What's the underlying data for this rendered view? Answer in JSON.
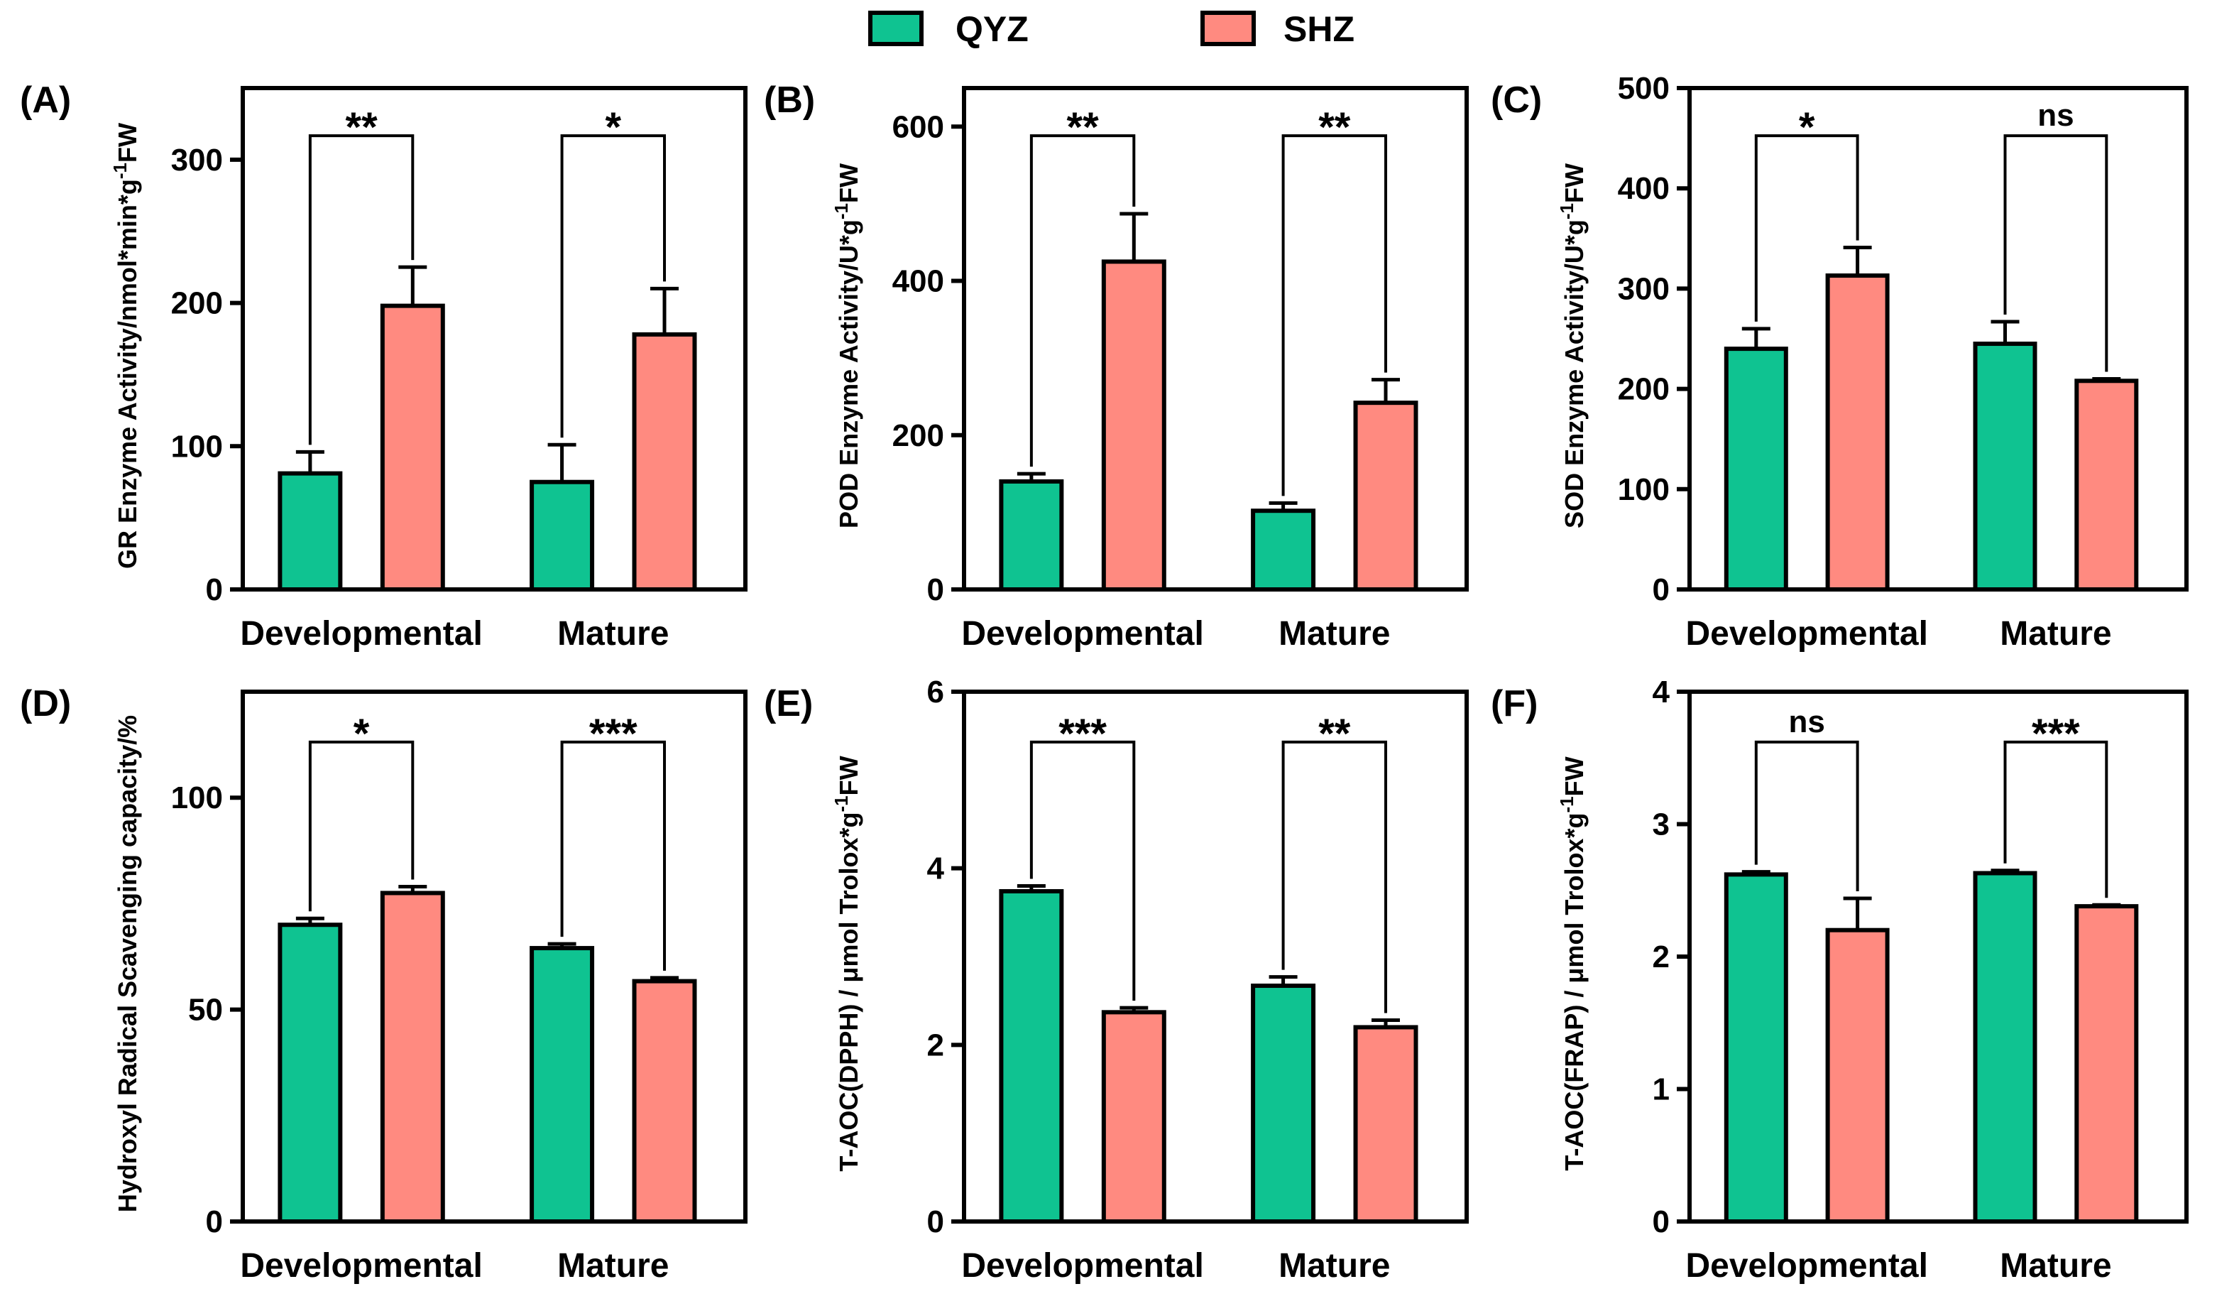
{
  "legend": {
    "items": [
      {
        "label": "QYZ",
        "color": "#0fc391"
      },
      {
        "label": "SHZ",
        "color": "#ff8a80"
      }
    ]
  },
  "chart_data": [
    {
      "type": "bar",
      "panel": "(A)",
      "ylabel": "GR Enzyme Activity/nmol*min*g",
      "ylabel_sup": "-1",
      "ylabel_tail": "FW",
      "ylim": [
        0,
        350
      ],
      "yticks": [
        0,
        100,
        200,
        300
      ],
      "categories": [
        "Developmental",
        "Mature"
      ],
      "series": [
        {
          "name": "QYZ",
          "values": [
            81,
            75
          ],
          "errors": [
            15,
            26
          ]
        },
        {
          "name": "SHZ",
          "values": [
            198,
            178
          ],
          "errors": [
            27,
            32
          ]
        }
      ],
      "significance": [
        "**",
        "*"
      ]
    },
    {
      "type": "bar",
      "panel": "(B)",
      "ylabel": "POD Enzyme Activity/U*g",
      "ylabel_sup": "-1",
      "ylabel_tail": "FW",
      "ylim": [
        0,
        650
      ],
      "yticks": [
        0,
        200,
        400,
        600
      ],
      "categories": [
        "Developmental",
        "Mature"
      ],
      "series": [
        {
          "name": "QYZ",
          "values": [
            140,
            102
          ],
          "errors": [
            10,
            10
          ]
        },
        {
          "name": "SHZ",
          "values": [
            425,
            242
          ],
          "errors": [
            62,
            30
          ]
        }
      ],
      "significance": [
        "**",
        "**"
      ]
    },
    {
      "type": "bar",
      "panel": "(C)",
      "ylabel": "SOD Enzyme Activity/U*g",
      "ylabel_sup": "-1",
      "ylabel_tail": "FW",
      "ylim": [
        0,
        500
      ],
      "yticks": [
        0,
        100,
        200,
        300,
        400,
        500
      ],
      "categories": [
        "Developmental",
        "Mature"
      ],
      "series": [
        {
          "name": "QYZ",
          "values": [
            240,
            245
          ],
          "errors": [
            20,
            22
          ]
        },
        {
          "name": "SHZ",
          "values": [
            313,
            208
          ],
          "errors": [
            28,
            2
          ]
        }
      ],
      "significance": [
        "*",
        "ns"
      ]
    },
    {
      "type": "bar",
      "panel": "(D)",
      "ylabel": "Hydroxyl Radical Scavenging capacity/%",
      "ylabel_sup": "",
      "ylabel_tail": "",
      "ylim": [
        0,
        125
      ],
      "yticks": [
        0,
        50,
        100
      ],
      "categories": [
        "Developmental",
        "Mature"
      ],
      "series": [
        {
          "name": "QYZ",
          "values": [
            70,
            64.5
          ],
          "errors": [
            1.5,
            1
          ]
        },
        {
          "name": "SHZ",
          "values": [
            77.5,
            56.7
          ],
          "errors": [
            1.5,
            0.8
          ]
        }
      ],
      "significance": [
        "*",
        "***"
      ]
    },
    {
      "type": "bar",
      "panel": "(E)",
      "ylabel": "T-AOC(DPPH) / μmol Trolox*g",
      "ylabel_sup": "-1",
      "ylabel_tail": "FW",
      "ylim": [
        0,
        6
      ],
      "yticks": [
        0,
        2,
        4,
        6
      ],
      "categories": [
        "Developmental",
        "Mature"
      ],
      "series": [
        {
          "name": "QYZ",
          "values": [
            3.74,
            2.67
          ],
          "errors": [
            0.06,
            0.1
          ]
        },
        {
          "name": "SHZ",
          "values": [
            2.37,
            2.2
          ],
          "errors": [
            0.05,
            0.08
          ]
        }
      ],
      "significance": [
        "***",
        "**"
      ]
    },
    {
      "type": "bar",
      "panel": "(F)",
      "ylabel": "T-AOC(FRAP) / μmol Trolox*g",
      "ylabel_sup": "-1",
      "ylabel_tail": "FW",
      "ylim": [
        0,
        4
      ],
      "yticks": [
        0,
        1,
        2,
        3,
        4
      ],
      "categories": [
        "Developmental",
        "Mature"
      ],
      "series": [
        {
          "name": "QYZ",
          "values": [
            2.62,
            2.63
          ],
          "errors": [
            0.02,
            0.02
          ]
        },
        {
          "name": "SHZ",
          "values": [
            2.2,
            2.38
          ],
          "errors": [
            0.24,
            0.01
          ]
        }
      ],
      "significance": [
        "ns",
        "***"
      ]
    }
  ]
}
